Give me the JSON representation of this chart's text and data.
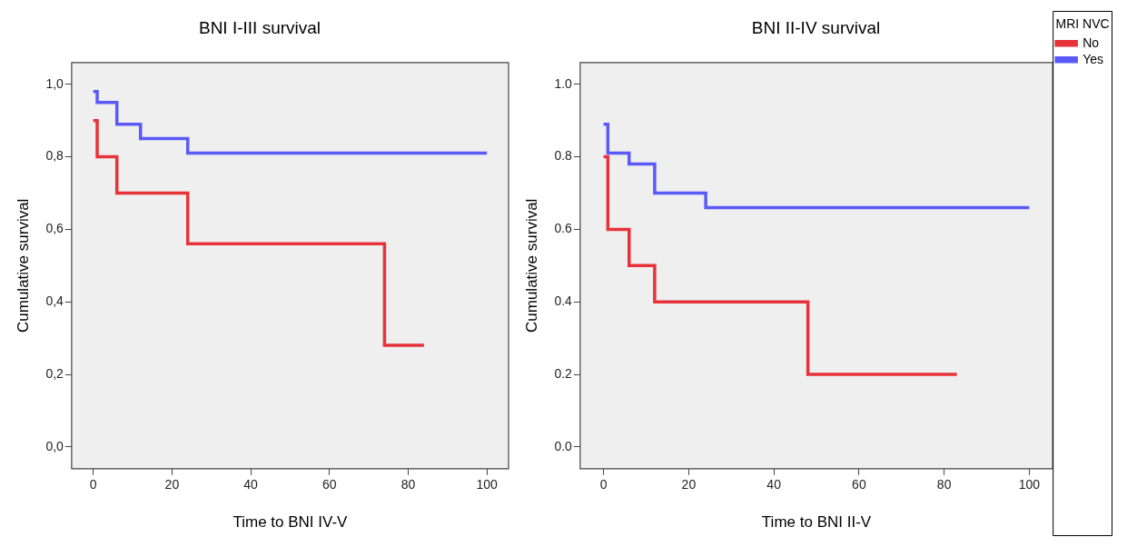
{
  "chart_data": [
    {
      "type": "step",
      "title": "BNI I-III survival",
      "xlabel": "Time to BNI IV-V",
      "ylabel": "Cumulative survival",
      "xlim": [
        -5.5,
        105.5
      ],
      "xticks": [
        0,
        20,
        40,
        60,
        80,
        100
      ],
      "ylim": [
        -0.06,
        1.06
      ],
      "yticks": [
        {
          "value": 0,
          "label": "0,0"
        },
        {
          "value": 0.2,
          "label": "0,2"
        },
        {
          "value": 0.4,
          "label": "0,4"
        },
        {
          "value": 0.6,
          "label": "0,6"
        },
        {
          "value": 0.8,
          "label": "0,8"
        },
        {
          "value": 1,
          "label": "1,0"
        }
      ],
      "series": [
        {
          "color": "#e8323a",
          "x": [
            0,
            1,
            6,
            24,
            74,
            84
          ],
          "values": [
            0.9,
            0.8,
            0.7,
            0.56,
            0.28,
            0.28
          ]
        },
        {
          "color": "#5a5af8",
          "x": [
            0,
            1,
            6,
            12,
            24,
            100
          ],
          "values": [
            0.98,
            0.95,
            0.89,
            0.85,
            0.81,
            0.81
          ]
        }
      ]
    },
    {
      "type": "step",
      "title": "BNI II-IV survival",
      "xlabel": "Time to BNI II-V",
      "ylabel": "Cumulative survival",
      "xlim": [
        -5.5,
        105.5
      ],
      "xticks": [
        0,
        20,
        40,
        60,
        80,
        100
      ],
      "ylim": [
        -0.06,
        1.06
      ],
      "yticks": [
        {
          "value": 0,
          "label": "0.0"
        },
        {
          "value": 0.2,
          "label": "0.2"
        },
        {
          "value": 0.4,
          "label": "0.4"
        },
        {
          "value": 0.6,
          "label": "0.6"
        },
        {
          "value": 0.8,
          "label": "0.8"
        },
        {
          "value": 1,
          "label": "1.0"
        }
      ],
      "legend": "right",
      "legend_title": "MRI NVC",
      "series": [
        {
          "name": "No",
          "color": "#e8323a",
          "x": [
            0,
            1,
            6,
            12,
            48,
            83
          ],
          "values": [
            0.8,
            0.6,
            0.5,
            0.4,
            0.2,
            0.2
          ]
        },
        {
          "name": "Yes",
          "color": "#5a5af8",
          "x": [
            0,
            1,
            6,
            12,
            24,
            100
          ],
          "values": [
            0.89,
            0.81,
            0.78,
            0.7,
            0.66,
            0.66
          ]
        }
      ]
    }
  ]
}
